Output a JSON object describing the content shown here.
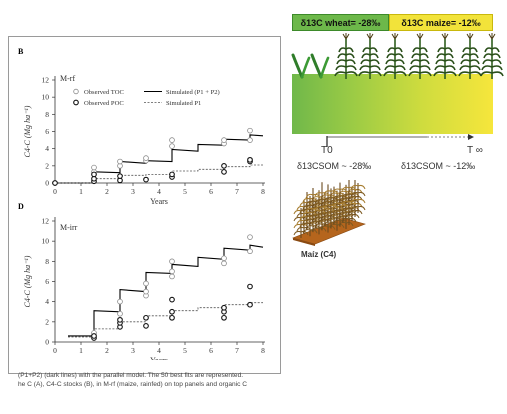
{
  "figure": {
    "caption_lines": [
      "(P1+P2) (dark lines) with the parallel model. The 50 best fits are represented.",
      "he C (A), C4-C stocks (B), in M-rf (maize, rainfed) on top panels and organic C"
    ]
  },
  "colors": {
    "wheat_band": "#6db84a",
    "maize_band": "#f2e33a",
    "soil_brown": "#b5651d",
    "observed_marker": "#777777",
    "line_total": "#000000",
    "line_p1": "#555555"
  },
  "schematic": {
    "wheat_label": "δ13C wheat= -28‰",
    "maize_label": "δ13C maize= -12‰",
    "t0_label": "T0",
    "tinf_label": "T ∞",
    "som_left_label": "δ13CSOM ~ -28‰",
    "som_right_label": "δ13CSOM ~ -12‰",
    "maize_caption": "Maíz (C4)",
    "icons": [
      "wheat-seedling-icon",
      "maize-plant-icon",
      "maize-field-icon"
    ]
  },
  "chart_data": [
    {
      "type": "line",
      "panel": "B",
      "title": "M-rf",
      "xlabel": "Years",
      "ylabel": "C4-C (Mg ha⁻¹)",
      "xlim": [
        0,
        8
      ],
      "ylim": [
        0,
        12
      ],
      "xticks": [
        0,
        1,
        2,
        3,
        4,
        5,
        6,
        7,
        8
      ],
      "yticks": [
        0,
        2,
        4,
        6,
        8,
        10,
        12
      ],
      "grid": false,
      "legend_position": "top",
      "legend": [
        "Observed TOC",
        "Observed POC",
        "Simulated (P1 + P2)",
        "Simulated P1"
      ],
      "observed_toc": [
        [
          0,
          0
        ],
        [
          1.5,
          1.3
        ],
        [
          1.5,
          1.8
        ],
        [
          2.5,
          2.0
        ],
        [
          2.5,
          2.5
        ],
        [
          3.5,
          2.6
        ],
        [
          3.5,
          2.9
        ],
        [
          4.5,
          4.3
        ],
        [
          4.5,
          5.0
        ],
        [
          6.5,
          4.6
        ],
        [
          6.5,
          5.0
        ],
        [
          7.5,
          5.0
        ],
        [
          7.5,
          6.1
        ]
      ],
      "observed_poc": [
        [
          0,
          0
        ],
        [
          1.5,
          0.2
        ],
        [
          1.5,
          0.5
        ],
        [
          1.5,
          1.0
        ],
        [
          2.5,
          0.3
        ],
        [
          2.5,
          0.8
        ],
        [
          3.5,
          0.4
        ],
        [
          4.5,
          0.7
        ],
        [
          4.5,
          1.0
        ],
        [
          6.5,
          1.3
        ],
        [
          6.5,
          2.0
        ],
        [
          7.5,
          2.5
        ],
        [
          7.5,
          2.7
        ]
      ],
      "series": [
        {
          "name": "Simulated (P1 + P2)",
          "x": [
            0,
            1.5,
            1.5,
            2.5,
            2.5,
            3.5,
            3.5,
            4.5,
            4.5,
            5.5,
            5.5,
            6.5,
            6.5,
            7.5,
            7.5,
            8
          ],
          "y": [
            0,
            0,
            1.3,
            1.2,
            2.5,
            2.3,
            2.6,
            2.5,
            3.9,
            3.7,
            4.5,
            4.4,
            5.1,
            5.0,
            5.6,
            5.5
          ]
        },
        {
          "name": "Simulated P1",
          "x": [
            0,
            1.5,
            1.5,
            2.5,
            2.5,
            3.5,
            3.5,
            4.5,
            4.5,
            5.5,
            5.5,
            6.5,
            6.5,
            7.5,
            7.5,
            8
          ],
          "y": [
            0,
            0,
            0.5,
            0.5,
            0.9,
            0.9,
            1.0,
            1.0,
            1.4,
            1.4,
            1.6,
            1.6,
            1.9,
            1.9,
            2.1,
            2.1
          ]
        }
      ]
    },
    {
      "type": "line",
      "panel": "D",
      "title": "M-irr",
      "xlabel": "Years",
      "ylabel": "C4-C (Mg ha⁻¹)",
      "xlim": [
        0,
        8
      ],
      "ylim": [
        0,
        12
      ],
      "xticks": [
        0,
        1,
        2,
        3,
        4,
        5,
        6,
        7,
        8
      ],
      "yticks": [
        0,
        2,
        4,
        6,
        8,
        10,
        12
      ],
      "grid": false,
      "observed_toc": [
        [
          1.5,
          0.9
        ],
        [
          2.5,
          2.8
        ],
        [
          2.5,
          4.0
        ],
        [
          3.5,
          4.6
        ],
        [
          3.5,
          5.0
        ],
        [
          3.5,
          5.8
        ],
        [
          4.5,
          6.5
        ],
        [
          4.5,
          7.0
        ],
        [
          4.5,
          8.0
        ],
        [
          6.5,
          7.8
        ],
        [
          6.5,
          8.3
        ],
        [
          7.5,
          9.0
        ],
        [
          7.5,
          10.4
        ]
      ],
      "observed_poc": [
        [
          1.5,
          0.4
        ],
        [
          1.5,
          0.6
        ],
        [
          2.5,
          1.5
        ],
        [
          2.5,
          1.9
        ],
        [
          2.5,
          2.2
        ],
        [
          3.5,
          1.6
        ],
        [
          3.5,
          2.4
        ],
        [
          4.5,
          2.4
        ],
        [
          4.5,
          3.0
        ],
        [
          4.5,
          4.2
        ],
        [
          6.5,
          2.4
        ],
        [
          6.5,
          3.0
        ],
        [
          6.5,
          3.4
        ],
        [
          7.5,
          3.7
        ],
        [
          7.5,
          5.5
        ]
      ],
      "series": [
        {
          "name": "Simulated (P1 + P2)",
          "x": [
            0.5,
            1.5,
            1.5,
            2.5,
            2.5,
            3.5,
            3.5,
            4.5,
            4.5,
            5.5,
            5.5,
            6.5,
            6.5,
            7.5,
            7.5,
            8
          ],
          "y": [
            0.6,
            0.6,
            3.1,
            3.0,
            5.2,
            5.0,
            6.9,
            6.8,
            7.7,
            7.5,
            8.4,
            8.2,
            9.3,
            9.1,
            9.6,
            9.4
          ]
        },
        {
          "name": "Simulated P1",
          "x": [
            0.5,
            1.5,
            1.5,
            2.5,
            2.5,
            3.5,
            3.5,
            4.5,
            4.5,
            5.5,
            5.5,
            6.5,
            6.5,
            7.5,
            7.5,
            8
          ],
          "y": [
            0.5,
            0.5,
            1.3,
            1.3,
            2.0,
            2.0,
            2.6,
            2.6,
            3.1,
            3.1,
            3.4,
            3.4,
            3.7,
            3.7,
            3.9,
            3.9
          ]
        }
      ]
    }
  ]
}
